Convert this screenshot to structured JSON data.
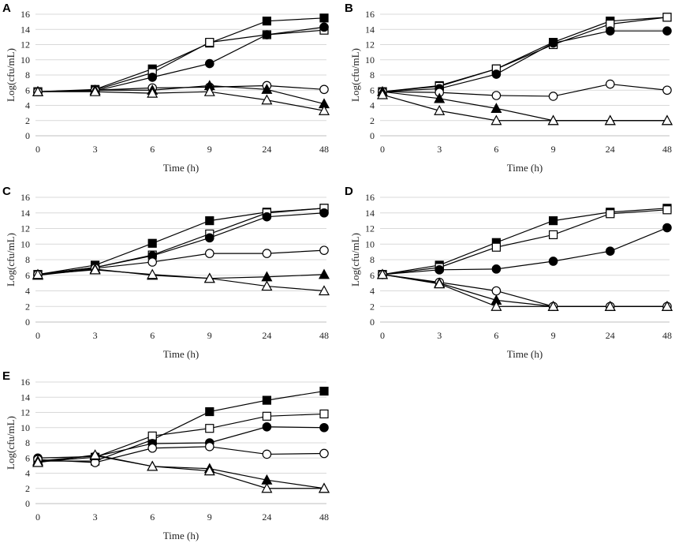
{
  "chart_data": [
    {
      "type": "line",
      "panel": "A",
      "categories": [
        "0",
        "3",
        "6",
        "9",
        "24",
        "48"
      ],
      "xlabel": "Time (h)",
      "ylabel": "Log(cfu/mL)",
      "ylim": [
        0,
        16
      ],
      "yticks": [
        "0",
        "2",
        "4",
        "6",
        "8",
        "10",
        "12",
        "14",
        "16"
      ],
      "series": [
        {
          "marker": "filled-square",
          "values": [
            5.8,
            6.1,
            8.8,
            12.2,
            15.1,
            15.5
          ]
        },
        {
          "marker": "open-square",
          "values": [
            5.8,
            6.0,
            8.3,
            12.3,
            13.3,
            13.9
          ]
        },
        {
          "marker": "filled-circle",
          "values": [
            5.8,
            5.9,
            7.7,
            9.5,
            13.3,
            14.3
          ]
        },
        {
          "marker": "open-circle",
          "values": [
            5.8,
            6.0,
            6.3,
            6.4,
            6.6,
            6.1
          ]
        },
        {
          "marker": "filled-triangle",
          "values": [
            5.8,
            6.0,
            6.0,
            6.6,
            6.1,
            4.2
          ]
        },
        {
          "marker": "open-triangle",
          "values": [
            5.8,
            5.8,
            5.6,
            5.8,
            4.7,
            3.3
          ]
        }
      ]
    },
    {
      "type": "line",
      "panel": "B",
      "categories": [
        "0",
        "3",
        "6",
        "9",
        "24",
        "48"
      ],
      "xlabel": "Time (h)",
      "ylabel": "Log(cfu/mL)",
      "ylim": [
        0,
        16
      ],
      "yticks": [
        "0",
        "2",
        "4",
        "6",
        "8",
        "10",
        "12",
        "14",
        "16"
      ],
      "series": [
        {
          "marker": "filled-square",
          "values": [
            5.8,
            6.6,
            8.8,
            12.3,
            15.1,
            15.6
          ]
        },
        {
          "marker": "open-square",
          "values": [
            5.8,
            6.5,
            8.8,
            12.0,
            14.7,
            15.6
          ]
        },
        {
          "marker": "filled-circle",
          "values": [
            5.8,
            6.2,
            8.1,
            12.2,
            13.8,
            13.8
          ]
        },
        {
          "marker": "open-circle",
          "values": [
            5.8,
            5.7,
            5.3,
            5.2,
            6.8,
            6.0
          ]
        },
        {
          "marker": "filled-triangle",
          "values": [
            5.8,
            4.9,
            3.6,
            2.0,
            2.0,
            2.0
          ]
        },
        {
          "marker": "open-triangle",
          "values": [
            5.4,
            3.3,
            2.0,
            2.0,
            2.0,
            2.0
          ]
        }
      ]
    },
    {
      "type": "line",
      "panel": "C",
      "categories": [
        "0",
        "3",
        "6",
        "9",
        "24",
        "48"
      ],
      "xlabel": "Time (h)",
      "ylabel": "Log(cfu/mL)",
      "ylim": [
        0,
        16
      ],
      "yticks": [
        "0",
        "2",
        "4",
        "6",
        "8",
        "10",
        "12",
        "14",
        "16"
      ],
      "series": [
        {
          "marker": "filled-square",
          "values": [
            6.1,
            7.3,
            10.1,
            13.0,
            14.1,
            14.6
          ]
        },
        {
          "marker": "open-square",
          "values": [
            6.1,
            7.0,
            8.6,
            11.3,
            14.0,
            14.6
          ]
        },
        {
          "marker": "filled-circle",
          "values": [
            6.1,
            7.0,
            8.5,
            10.8,
            13.5,
            14.0
          ]
        },
        {
          "marker": "open-circle",
          "values": [
            6.1,
            6.9,
            7.7,
            8.8,
            8.8,
            9.2
          ]
        },
        {
          "marker": "filled-triangle",
          "values": [
            6.0,
            6.8,
            6.0,
            5.6,
            5.8,
            6.1
          ]
        },
        {
          "marker": "open-triangle",
          "values": [
            6.1,
            6.7,
            6.1,
            5.6,
            4.6,
            4.0
          ]
        }
      ]
    },
    {
      "type": "line",
      "panel": "D",
      "categories": [
        "0",
        "3",
        "6",
        "9",
        "24",
        "48"
      ],
      "xlabel": "Time (h)",
      "ylabel": "Log(cfu/mL)",
      "ylim": [
        0,
        16
      ],
      "yticks": [
        "0",
        "2",
        "4",
        "6",
        "8",
        "10",
        "12",
        "14",
        "16"
      ],
      "series": [
        {
          "marker": "filled-square",
          "values": [
            6.1,
            7.3,
            10.2,
            13.0,
            14.1,
            14.6
          ]
        },
        {
          "marker": "open-square",
          "values": [
            6.1,
            7.0,
            9.6,
            11.2,
            13.9,
            14.4
          ]
        },
        {
          "marker": "filled-circle",
          "values": [
            6.1,
            6.7,
            6.8,
            7.8,
            9.1,
            12.1
          ]
        },
        {
          "marker": "open-circle",
          "values": [
            6.1,
            5.1,
            4.0,
            2.0,
            2.0,
            2.0
          ]
        },
        {
          "marker": "filled-triangle",
          "values": [
            6.1,
            5.0,
            2.8,
            2.0,
            2.0,
            2.0
          ]
        },
        {
          "marker": "open-triangle",
          "values": [
            6.1,
            4.9,
            2.0,
            2.0,
            2.0,
            2.0
          ]
        }
      ]
    },
    {
      "type": "line",
      "panel": "E",
      "categories": [
        "0",
        "3",
        "6",
        "9",
        "24",
        "48"
      ],
      "xlabel": "Time (h)",
      "ylabel": "Log(cfu/mL)",
      "ylim": [
        0,
        16
      ],
      "yticks": [
        "0",
        "2",
        "4",
        "6",
        "8",
        "10",
        "12",
        "14",
        "16"
      ],
      "series": [
        {
          "marker": "filled-square",
          "values": [
            5.6,
            5.6,
            8.4,
            12.1,
            13.6,
            14.8
          ]
        },
        {
          "marker": "open-square",
          "values": [
            5.5,
            6.1,
            8.9,
            9.9,
            11.5,
            11.8
          ]
        },
        {
          "marker": "filled-circle",
          "values": [
            6.0,
            6.2,
            7.9,
            8.0,
            10.1,
            10.0
          ]
        },
        {
          "marker": "open-circle",
          "values": [
            5.8,
            5.4,
            7.3,
            7.5,
            6.5,
            6.6
          ]
        },
        {
          "marker": "filled-triangle",
          "values": [
            5.6,
            6.3,
            4.9,
            4.6,
            3.1,
            2.0
          ]
        },
        {
          "marker": "open-triangle",
          "values": [
            5.4,
            6.4,
            4.9,
            4.3,
            2.0,
            2.0
          ]
        }
      ]
    }
  ]
}
